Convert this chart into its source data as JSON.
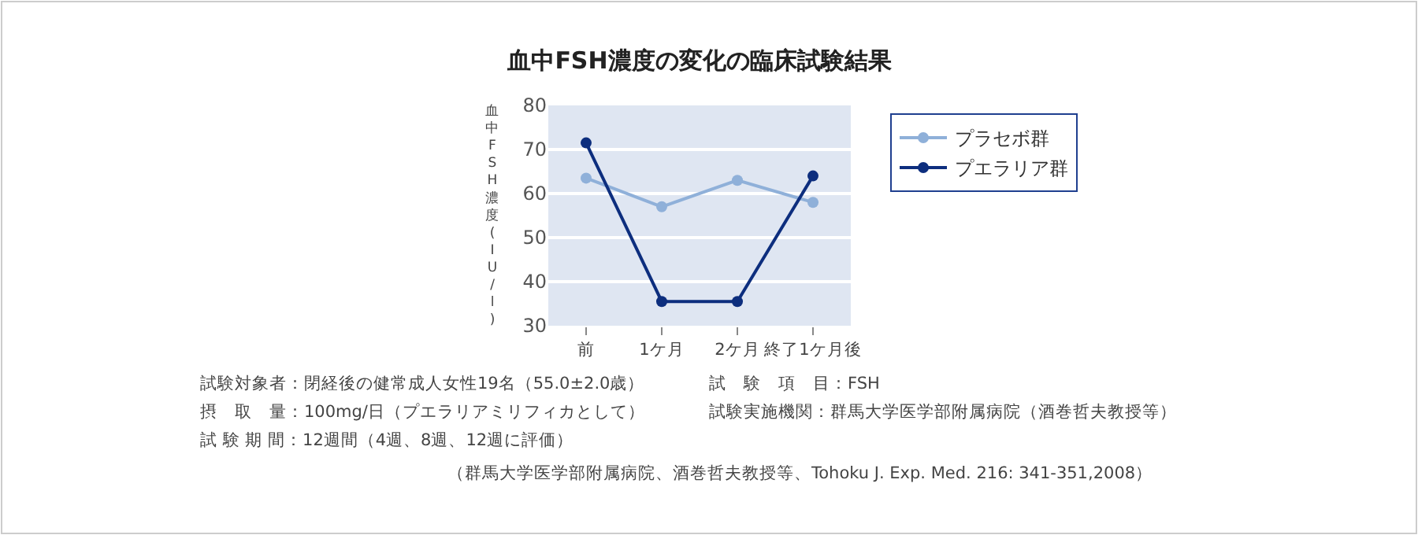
{
  "chart_data": {
    "type": "line",
    "title": "血中FSH濃度の変化の臨床試験結果",
    "ylabel": "血中FSH濃度(IU/l)",
    "categories": [
      "前",
      "1ケ月",
      "2ケ月",
      "終了1ケ月後"
    ],
    "series": [
      {
        "name": "プラセボ群",
        "color": "#8fb0d9",
        "values": [
          63.5,
          57,
          63,
          58
        ]
      },
      {
        "name": "プエラリア群",
        "color": "#0d2e7e",
        "values": [
          71.5,
          35.5,
          35.5,
          64
        ]
      }
    ],
    "ylim": [
      30,
      80
    ],
    "yticks": [
      30,
      40,
      50,
      60,
      70,
      80
    ],
    "grid": "y",
    "legend": "top right",
    "marker": "circle",
    "line_style": "solid",
    "annotations": [
      "試験対象者：閉経後の健常成人女性19名（55.0±2.0歳）",
      "摂　取　量：100mg/日（プエラリアミリフィカとして）",
      "試 験 期 間：12週間（4週、8週、12週に評価）",
      "試　験　項　目：FSH",
      "試験実施機関：群馬大学医学部附属病院（酒巻哲夫教授等）",
      "（群馬大学医学部附属病院、酒巻哲夫教授等、Tohoku J. Exp. Med. 216: 341-351,2008）"
    ]
  }
}
